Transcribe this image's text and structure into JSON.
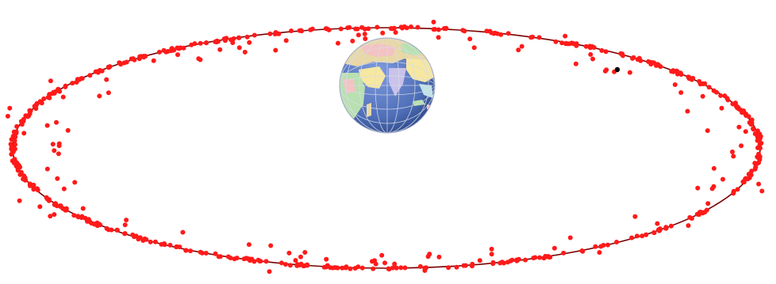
{
  "scene": {
    "description_visible_text": "",
    "colors": {
      "background": "#ffffff",
      "orbit_line": "#7a0000",
      "satellite": "#ff1a1a",
      "highlighted_satellite": "#000000",
      "ocean": "#4f6fb8",
      "land_palette": [
        "#e9d8a6",
        "#b9e0b0",
        "#f4c2c2",
        "#c9c2ea",
        "#f6e7a1",
        "#bfe3e6"
      ],
      "grid": "#d8dde8"
    },
    "icons": [
      "earth-globe-icon",
      "satellite-dot-icon"
    ],
    "orbit": {
      "type": "ellipse",
      "belt_satellite_count": 520,
      "scattered_satellite_count": 110,
      "highlighted_satellite_count": 1
    }
  }
}
